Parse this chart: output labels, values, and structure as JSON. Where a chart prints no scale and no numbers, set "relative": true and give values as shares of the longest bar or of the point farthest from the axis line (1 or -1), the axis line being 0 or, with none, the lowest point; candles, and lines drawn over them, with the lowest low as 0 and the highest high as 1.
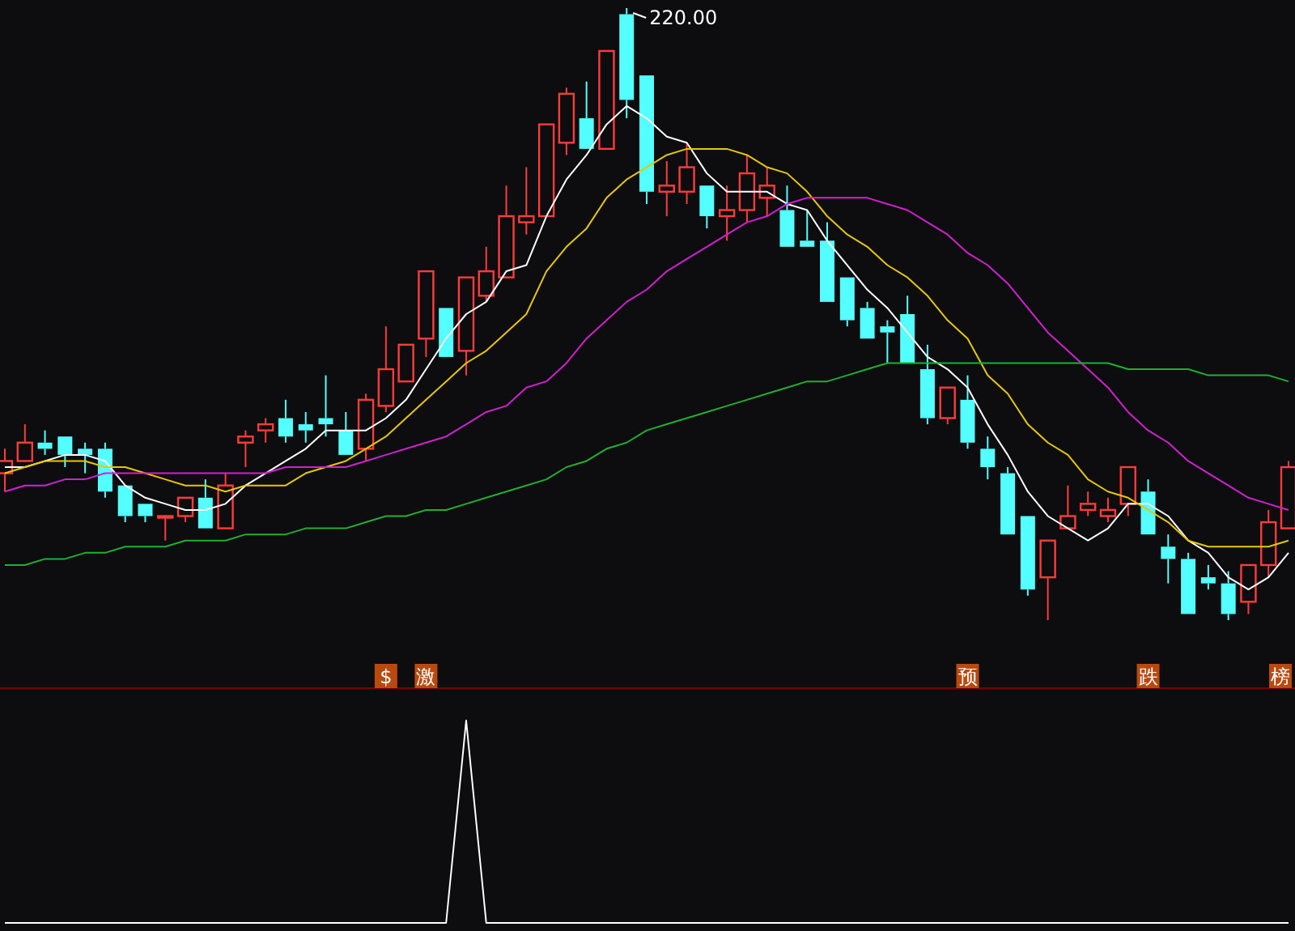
{
  "chart_data": [
    {
      "type": "candlestick",
      "relative": true,
      "categories": [
        null,
        null,
        null,
        null,
        null,
        null,
        null,
        null,
        null,
        null,
        null,
        null,
        null,
        null,
        null,
        null,
        null,
        null,
        null,
        "$",
        null,
        "激",
        null,
        null,
        null,
        null,
        null,
        null,
        null,
        null,
        null,
        null,
        null,
        null,
        null,
        null,
        null,
        null,
        null,
        null,
        null,
        null,
        null,
        null,
        null,
        null,
        null,
        null,
        "预",
        null,
        null,
        null,
        null,
        null,
        null,
        null,
        null,
        "跌",
        null,
        null,
        null,
        null,
        null,
        null,
        "榜"
      ],
      "ohlc": [
        [
          0.24,
          0.28,
          0.21,
          0.26
        ],
        [
          0.26,
          0.32,
          0.26,
          0.29
        ],
        [
          0.29,
          0.31,
          0.27,
          0.28
        ],
        [
          0.3,
          0.3,
          0.25,
          0.27
        ],
        [
          0.28,
          0.29,
          0.24,
          0.27
        ],
        [
          0.28,
          0.29,
          0.2,
          0.21
        ],
        [
          0.22,
          0.22,
          0.16,
          0.17
        ],
        [
          0.19,
          0.19,
          0.16,
          0.17
        ],
        [
          0.17,
          0.17,
          0.13,
          0.17
        ],
        [
          0.17,
          0.2,
          0.16,
          0.2
        ],
        [
          0.2,
          0.23,
          0.15,
          0.15
        ],
        [
          0.15,
          0.24,
          0.15,
          0.22
        ],
        [
          0.29,
          0.31,
          0.25,
          0.3
        ],
        [
          0.31,
          0.33,
          0.29,
          0.32
        ],
        [
          0.33,
          0.36,
          0.29,
          0.3
        ],
        [
          0.32,
          0.34,
          0.29,
          0.31
        ],
        [
          0.33,
          0.4,
          0.3,
          0.32
        ],
        [
          0.31,
          0.34,
          0.27,
          0.27
        ],
        [
          0.28,
          0.37,
          0.26,
          0.36
        ],
        [
          0.35,
          0.48,
          0.34,
          0.41
        ],
        [
          0.39,
          0.45,
          0.39,
          0.45
        ],
        [
          0.46,
          0.57,
          0.43,
          0.57
        ],
        [
          0.51,
          0.51,
          0.43,
          0.43
        ],
        [
          0.44,
          0.56,
          0.4,
          0.56
        ],
        [
          0.53,
          0.61,
          0.52,
          0.57
        ],
        [
          0.56,
          0.71,
          0.56,
          0.66
        ],
        [
          0.65,
          0.74,
          0.63,
          0.66
        ],
        [
          0.66,
          0.81,
          0.66,
          0.81
        ],
        [
          0.78,
          0.87,
          0.76,
          0.86
        ],
        [
          0.82,
          0.88,
          0.77,
          0.77
        ],
        [
          0.77,
          0.93,
          0.77,
          0.93
        ],
        [
          0.99,
          1,
          0.82,
          0.85
        ],
        [
          0.89,
          0.89,
          0.68,
          0.7
        ],
        [
          0.7,
          0.75,
          0.66,
          0.71
        ],
        [
          0.7,
          0.78,
          0.68,
          0.74
        ],
        [
          0.71,
          0.71,
          0.64,
          0.66
        ],
        [
          0.66,
          0.71,
          0.62,
          0.67
        ],
        [
          0.67,
          0.76,
          0.65,
          0.73
        ],
        [
          0.69,
          0.74,
          0.66,
          0.71
        ],
        [
          0.67,
          0.71,
          0.61,
          0.61
        ],
        [
          0.62,
          0.67,
          0.61,
          0.61
        ],
        [
          0.62,
          0.65,
          0.52,
          0.52
        ],
        [
          0.56,
          0.56,
          0.48,
          0.49
        ],
        [
          0.51,
          0.52,
          0.46,
          0.46
        ],
        [
          0.48,
          0.49,
          0.42,
          0.47
        ],
        [
          0.5,
          0.53,
          0.42,
          0.42
        ],
        [
          0.41,
          0.45,
          0.32,
          0.33
        ],
        [
          0.33,
          0.38,
          0.32,
          0.38
        ],
        [
          0.36,
          0.4,
          0.28,
          0.29
        ],
        [
          0.28,
          0.3,
          0.23,
          0.25
        ],
        [
          0.24,
          0.25,
          0.14,
          0.14
        ],
        [
          0.17,
          0.17,
          0.04,
          0.05
        ],
        [
          0.07,
          0.13,
          0,
          0.13
        ],
        [
          0.15,
          0.22,
          0.15,
          0.17
        ],
        [
          0.18,
          0.21,
          0.17,
          0.19
        ],
        [
          0.17,
          0.2,
          0.16,
          0.18
        ],
        [
          0.19,
          0.25,
          0.17,
          0.25
        ],
        [
          0.21,
          0.23,
          0.14,
          0.14
        ],
        [
          0.12,
          0.14,
          0.06,
          0.1
        ],
        [
          0.1,
          0.11,
          0.01,
          0.01
        ],
        [
          0.07,
          0.09,
          0.05,
          0.06
        ],
        [
          0.06,
          0.08,
          0,
          0.01
        ],
        [
          0.03,
          0.09,
          0.01,
          0.09
        ],
        [
          0.09,
          0.18,
          0.07,
          0.16
        ],
        [
          0.15,
          0.26,
          0.15,
          0.25
        ]
      ],
      "series": [
        {
          "type": "line",
          "color": "#ffffff",
          "values": [
            0.25,
            0.25,
            0.26,
            0.27,
            0.27,
            0.26,
            0.22,
            0.2,
            0.19,
            0.18,
            0.18,
            0.19,
            0.22,
            0.24,
            0.26,
            0.28,
            0.31,
            0.31,
            0.31,
            0.33,
            0.36,
            0.41,
            0.46,
            0.5,
            0.52,
            0.57,
            0.58,
            0.66,
            0.72,
            0.76,
            0.81,
            0.84,
            0.82,
            0.79,
            0.78,
            0.73,
            0.7,
            0.7,
            0.7,
            0.68,
            0.67,
            0.62,
            0.58,
            0.54,
            0.51,
            0.47,
            0.43,
            0.41,
            0.38,
            0.32,
            0.27,
            0.21,
            0.17,
            0.15,
            0.13,
            0.15,
            0.19,
            0.19,
            0.17,
            0.13,
            0.11,
            0.07,
            0.05,
            0.07,
            0.11
          ]
        },
        {
          "type": "line",
          "color": "#e6c700",
          "values": [
            0.24,
            0.25,
            0.26,
            0.26,
            0.26,
            0.25,
            0.25,
            0.24,
            0.23,
            0.22,
            0.22,
            0.21,
            0.22,
            0.22,
            0.22,
            0.24,
            0.25,
            0.26,
            0.28,
            0.3,
            0.33,
            0.36,
            0.39,
            0.42,
            0.44,
            0.47,
            0.5,
            0.57,
            0.61,
            0.64,
            0.69,
            0.72,
            0.74,
            0.76,
            0.77,
            0.77,
            0.77,
            0.76,
            0.74,
            0.73,
            0.7,
            0.66,
            0.63,
            0.61,
            0.58,
            0.56,
            0.53,
            0.49,
            0.46,
            0.4,
            0.37,
            0.32,
            0.29,
            0.27,
            0.23,
            0.21,
            0.2,
            0.18,
            0.16,
            0.13,
            0.12,
            0.12,
            0.12,
            0.12,
            0.13
          ]
        },
        {
          "type": "line",
          "color": "#d020d0",
          "values": [
            0.21,
            0.22,
            0.22,
            0.23,
            0.23,
            0.24,
            0.24,
            0.24,
            0.24,
            0.24,
            0.24,
            0.24,
            0.24,
            0.24,
            0.25,
            0.25,
            0.25,
            0.25,
            0.26,
            0.27,
            0.28,
            0.29,
            0.3,
            0.32,
            0.34,
            0.35,
            0.38,
            0.39,
            0.42,
            0.46,
            0.49,
            0.52,
            0.54,
            0.57,
            0.59,
            0.61,
            0.63,
            0.65,
            0.66,
            0.68,
            0.69,
            0.69,
            0.69,
            0.69,
            0.68,
            0.67,
            0.65,
            0.63,
            0.6,
            0.58,
            0.55,
            0.51,
            0.47,
            0.44,
            0.41,
            0.38,
            0.34,
            0.31,
            0.29,
            0.26,
            0.24,
            0.22,
            0.2,
            0.19,
            0.18
          ]
        },
        {
          "type": "line",
          "color": "#20b030",
          "values": [
            0.09,
            0.09,
            0.1,
            0.1,
            0.11,
            0.11,
            0.12,
            0.12,
            0.12,
            0.13,
            0.13,
            0.13,
            0.14,
            0.14,
            0.14,
            0.15,
            0.15,
            0.15,
            0.16,
            0.17,
            0.17,
            0.18,
            0.18,
            0.19,
            0.2,
            0.21,
            0.22,
            0.23,
            0.25,
            0.26,
            0.28,
            0.29,
            0.31,
            0.32,
            0.33,
            0.34,
            0.35,
            0.36,
            0.37,
            0.38,
            0.39,
            0.39,
            0.4,
            0.41,
            0.42,
            0.42,
            0.42,
            0.42,
            0.42,
            0.42,
            0.42,
            0.42,
            0.42,
            0.42,
            0.42,
            0.42,
            0.41,
            0.41,
            0.41,
            0.41,
            0.4,
            0.4,
            0.4,
            0.4,
            0.39
          ]
        }
      ],
      "annotations": [
        "220.00"
      ]
    },
    {
      "type": "line",
      "relative": true,
      "categories": [
        null,
        null,
        null,
        null,
        null,
        null,
        null,
        null,
        null,
        null,
        null,
        null,
        null,
        null,
        null,
        null,
        null,
        null,
        null,
        null,
        null,
        null,
        null,
        null,
        null,
        null,
        null,
        null,
        null,
        null,
        null,
        null,
        null,
        null,
        null,
        null,
        null,
        null,
        null,
        null,
        null,
        null,
        null,
        null,
        null,
        null,
        null,
        null,
        null,
        null,
        null,
        null,
        null,
        null,
        null,
        null,
        null,
        null,
        null,
        null,
        null,
        null,
        null,
        null,
        null
      ],
      "values": [
        0,
        0,
        0,
        0,
        0,
        0,
        0,
        0,
        0,
        0,
        0,
        0,
        0,
        0,
        0,
        0,
        0,
        0,
        0,
        0,
        0,
        0,
        0,
        1,
        0,
        0,
        0,
        0,
        0,
        0,
        0,
        0,
        0,
        0,
        0,
        0,
        0,
        0,
        0,
        0,
        0,
        0,
        0,
        0,
        0,
        0,
        0,
        0,
        0,
        0,
        0,
        0,
        0,
        0,
        0,
        0,
        0,
        0,
        0,
        0,
        0,
        0,
        0,
        0,
        0
      ],
      "color": "#ffffff"
    }
  ]
}
